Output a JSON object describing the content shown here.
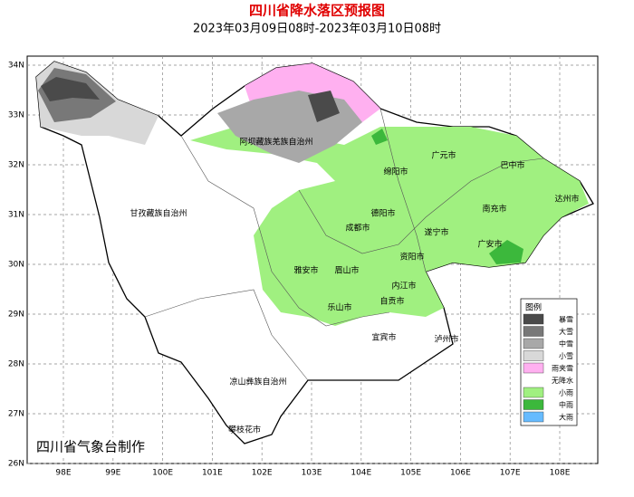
{
  "header": {
    "title": "四川省降水落区预报图",
    "subtitle": "2023年03月09日08时-2023年03月10日08时"
  },
  "axes": {
    "lon_labels": [
      "98E",
      "99E",
      "100E",
      "101E",
      "102E",
      "103E",
      "104E",
      "105E",
      "106E",
      "107E",
      "108E"
    ],
    "lat_labels": [
      "34N",
      "33N",
      "32N",
      "31N",
      "30N",
      "29N",
      "28N",
      "27N",
      "26N"
    ]
  },
  "places": [
    "阿坝藏族羌族自治州",
    "绵阳市",
    "广元市",
    "巴中市",
    "达州市",
    "甘孜藏族自治州",
    "德阳市",
    "南充市",
    "成都市",
    "遂宁市",
    "广安市",
    "资阳市",
    "雅安市",
    "眉山市",
    "内江市",
    "乐山市",
    "自贡市",
    "宜宾市",
    "泸州市",
    "凉山彝族自治州",
    "攀枝花市"
  ],
  "legend": {
    "title": "图例",
    "items": [
      {
        "label": "暴雪",
        "color": "#4a4a4a"
      },
      {
        "label": "大雪",
        "color": "#787878"
      },
      {
        "label": "中雪",
        "color": "#a8a8a8"
      },
      {
        "label": "小雪",
        "color": "#d8d8d8"
      },
      {
        "label": "雨夹雪",
        "color": "#ffb0f0"
      },
      {
        "label": "无降水",
        "color": "#ffffff"
      },
      {
        "label": "小雨",
        "color": "#a0f080"
      },
      {
        "label": "中雨",
        "color": "#3cb83c"
      },
      {
        "label": "大雨",
        "color": "#66bbff"
      }
    ]
  },
  "credit": "四川省气象台制作"
}
